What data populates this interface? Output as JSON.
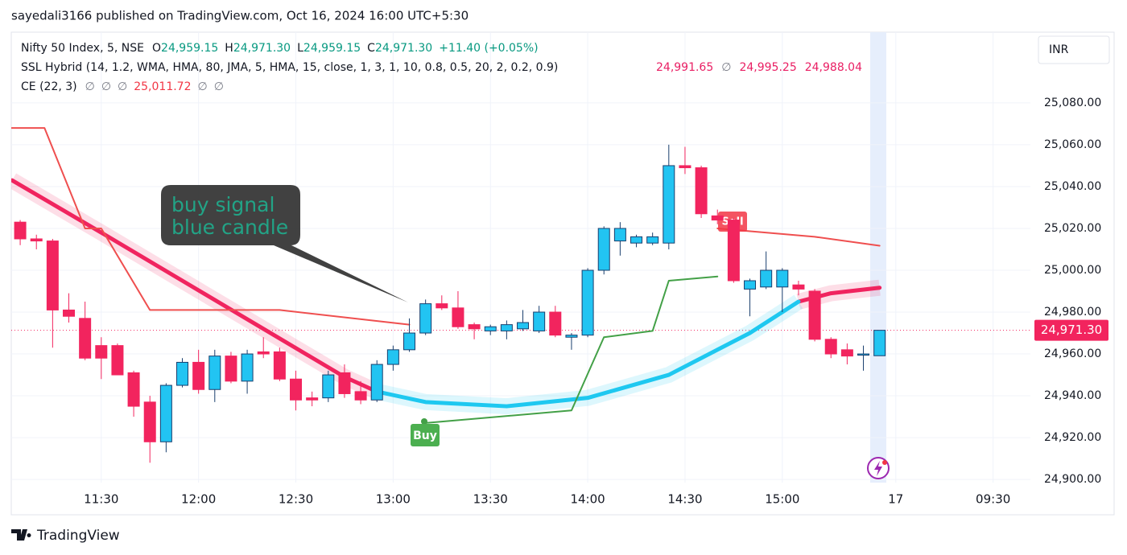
{
  "header": {
    "text": "sayedali3166 published on TradingView.com, Oct 16, 2024 16:00 UTC+5:30"
  },
  "legend": {
    "symbol": "Nifty 50 Index, 5, NSE",
    "ohlc": [
      {
        "label": "O",
        "value": "24,959.15"
      },
      {
        "label": "H",
        "value": "24,971.30"
      },
      {
        "label": "L",
        "value": "24,959.15"
      },
      {
        "label": "C",
        "value": "24,971.30"
      }
    ],
    "change": "+11.40 (+0.05%)",
    "ssl": {
      "name": "SSL Hybrid (14, 1.2, WMA, HMA, 80, JMA, 5, HMA, 15, close, 1, 3, 1, 10, 0.8, 0.5, 20, 2, 0.2, 0.9)",
      "values": [
        "24,991.65",
        "∅",
        "24,995.25",
        "24,988.04"
      ]
    },
    "ce": {
      "name": "CE (22, 3)",
      "values": [
        "∅",
        "∅",
        "∅",
        "25,011.72",
        "∅",
        "∅"
      ]
    }
  },
  "currency": "INR",
  "callout": [
    "buy signal",
    "blue candle"
  ],
  "signals": {
    "buy": "Buy",
    "sell": "Sell"
  },
  "footer": "TradingView",
  "chart_data": {
    "type": "candlestick",
    "x": [
      0,
      1,
      2,
      3,
      4,
      5,
      6,
      7,
      8,
      9,
      10,
      11,
      12,
      13,
      14,
      15,
      16,
      17,
      18,
      19,
      20,
      21,
      22,
      23,
      24,
      25,
      26,
      27,
      28,
      29,
      30,
      31,
      32,
      33,
      34,
      35,
      36,
      37,
      38,
      39,
      40,
      41,
      42,
      43,
      44,
      45,
      46,
      47,
      48,
      49,
      50,
      51,
      52,
      53
    ],
    "open": [
      25023,
      25015,
      25014,
      24981,
      24977,
      24964,
      24964,
      24951,
      24937,
      24918,
      24945,
      24956,
      24943,
      24959,
      24947,
      24961,
      24961,
      24948,
      24939,
      24939,
      24951,
      24942,
      24938,
      24955,
      24962,
      24970,
      24984,
      24982,
      24974,
      24971,
      24971,
      24972,
      24971,
      24980,
      24968,
      24969,
      25000,
      25014,
      25013,
      25013,
      25013,
      25050,
      25049,
      25026,
      25024,
      24991,
      24992,
      24992,
      24993,
      24990,
      24967,
      24962,
      24960,
      24959.15
    ],
    "high": [
      25024,
      25017,
      25015,
      24989,
      24985,
      24968,
      24965,
      24952,
      24940,
      24946,
      24958,
      24962,
      24962,
      24961,
      24962,
      24968,
      24963,
      24952,
      24942,
      24952,
      24955,
      24947,
      24957,
      24964,
      24977,
      24986,
      24988,
      24990,
      24975,
      24974,
      24976,
      24981,
      24983,
      24983,
      24970,
      25001,
      25021,
      25023,
      25017,
      25018,
      25060,
      25059,
      25050,
      25029,
      25025,
      24996,
      25009,
      25001,
      24995,
      24991,
      24968,
      24965,
      24964,
      24971.3
    ],
    "low": [
      25012,
      25010,
      24963,
      24975,
      24957,
      24948,
      24950,
      24930,
      24908,
      24913,
      24944,
      24941,
      24937,
      24946,
      24941,
      24958,
      24947,
      24933,
      24935,
      24937,
      24939,
      24936,
      24937,
      24952,
      24961,
      24969,
      24981,
      24972,
      24967,
      24969,
      24967,
      24971,
      24970,
      24968,
      24962,
      24968,
      24998,
      25007,
      25011,
      25012,
      25010,
      25046,
      25025,
      25022,
      24994,
      24978,
      24991,
      24980,
      24988,
      24966,
      24958,
      24955,
      24952,
      24959.15
    ],
    "close": [
      25015,
      25014,
      24981,
      24978,
      24958,
      24958,
      24950,
      24935,
      24918,
      24945,
      24956,
      24943,
      24959,
      24947,
      24960,
      24960,
      24948,
      24938,
      24938,
      24950,
      24941,
      24938,
      24955,
      24962,
      24970,
      24984,
      24982,
      24973,
      24972,
      24973,
      24974,
      24975,
      24980,
      24969,
      24969,
      25000,
      25020,
      25020,
      25016,
      25016,
      25050,
      25049,
      25027,
      25024,
      24995,
      24995,
      25000,
      25000,
      24991,
      24967,
      24960,
      24959,
      24960,
      24971.3
    ],
    "up_color": "#22c4f2",
    "down_color": "#f2245e",
    "lines": [
      {
        "x": [
          -0.5,
          5,
          10,
          15,
          20,
          22,
          25,
          30,
          35,
          40,
          45,
          48,
          50,
          53
        ],
        "values": [
          25043,
          25018,
          24995,
          24972,
          24949,
          24942,
          null,
          null,
          null,
          null,
          null,
          24985,
          24989,
          24991.65
        ],
        "color": "#f0245f",
        "width": 5
      },
      {
        "x": [
          -0.5,
          5,
          10,
          15,
          20,
          22,
          25,
          30,
          35,
          40,
          45,
          48,
          50,
          53
        ],
        "values": [
          null,
          null,
          null,
          null,
          null,
          24942,
          24937,
          24935,
          24939,
          24950,
          24970,
          24985,
          null,
          null
        ],
        "color": "#1ec8f0",
        "width": 5
      },
      {
        "x": [
          -0.55,
          1.5,
          4,
          5,
          8,
          16,
          24
        ],
        "values": [
          25068,
          25068,
          25020,
          25020,
          24981,
          24981,
          24974
        ],
        "color": "#ef4f4f",
        "width": 2
      },
      {
        "x": [
          25,
          34,
          36,
          39,
          40,
          43
        ],
        "values": [
          24927,
          24933,
          24968,
          24971,
          24995,
          24997
        ],
        "color": "#43a047",
        "width": 2
      },
      {
        "x": [
          43,
          49,
          53
        ],
        "values": [
          25020,
          25016,
          25011.72
        ],
        "color": "#ef4f4f",
        "width": 2
      }
    ],
    "last_price": {
      "value": 24971.3,
      "label": "24,971.30"
    },
    "xlim": [
      -0.55,
      62.3
    ],
    "ylim": [
      24898.5,
      25113.8
    ],
    "xticks": [
      {
        "value": 5,
        "label": "11:30"
      },
      {
        "value": 11,
        "label": "12:00"
      },
      {
        "value": 17,
        "label": "12:30"
      },
      {
        "value": 23,
        "label": "13:00"
      },
      {
        "value": 29,
        "label": "13:30"
      },
      {
        "value": 35,
        "label": "14:00"
      },
      {
        "value": 41,
        "label": "14:30"
      },
      {
        "value": 47,
        "label": "15:00"
      },
      {
        "value": 54,
        "label": "17"
      },
      {
        "value": 60,
        "label": "09:30"
      }
    ],
    "yticks": [
      {
        "value": 24900,
        "label": "24,900.00"
      },
      {
        "value": 24920,
        "label": "24,920.00"
      },
      {
        "value": 24940,
        "label": "24,940.00"
      },
      {
        "value": 24960,
        "label": "24,960.00"
      },
      {
        "value": 24980,
        "label": "24,980.00"
      },
      {
        "value": 25000,
        "label": "25,000.00"
      },
      {
        "value": 25020,
        "label": "25,020.00"
      },
      {
        "value": 25040,
        "label": "25,040.00"
      },
      {
        "value": 25060,
        "label": "25,060.00"
      },
      {
        "value": 25080,
        "label": "25,080.00"
      }
    ],
    "grid": true
  }
}
